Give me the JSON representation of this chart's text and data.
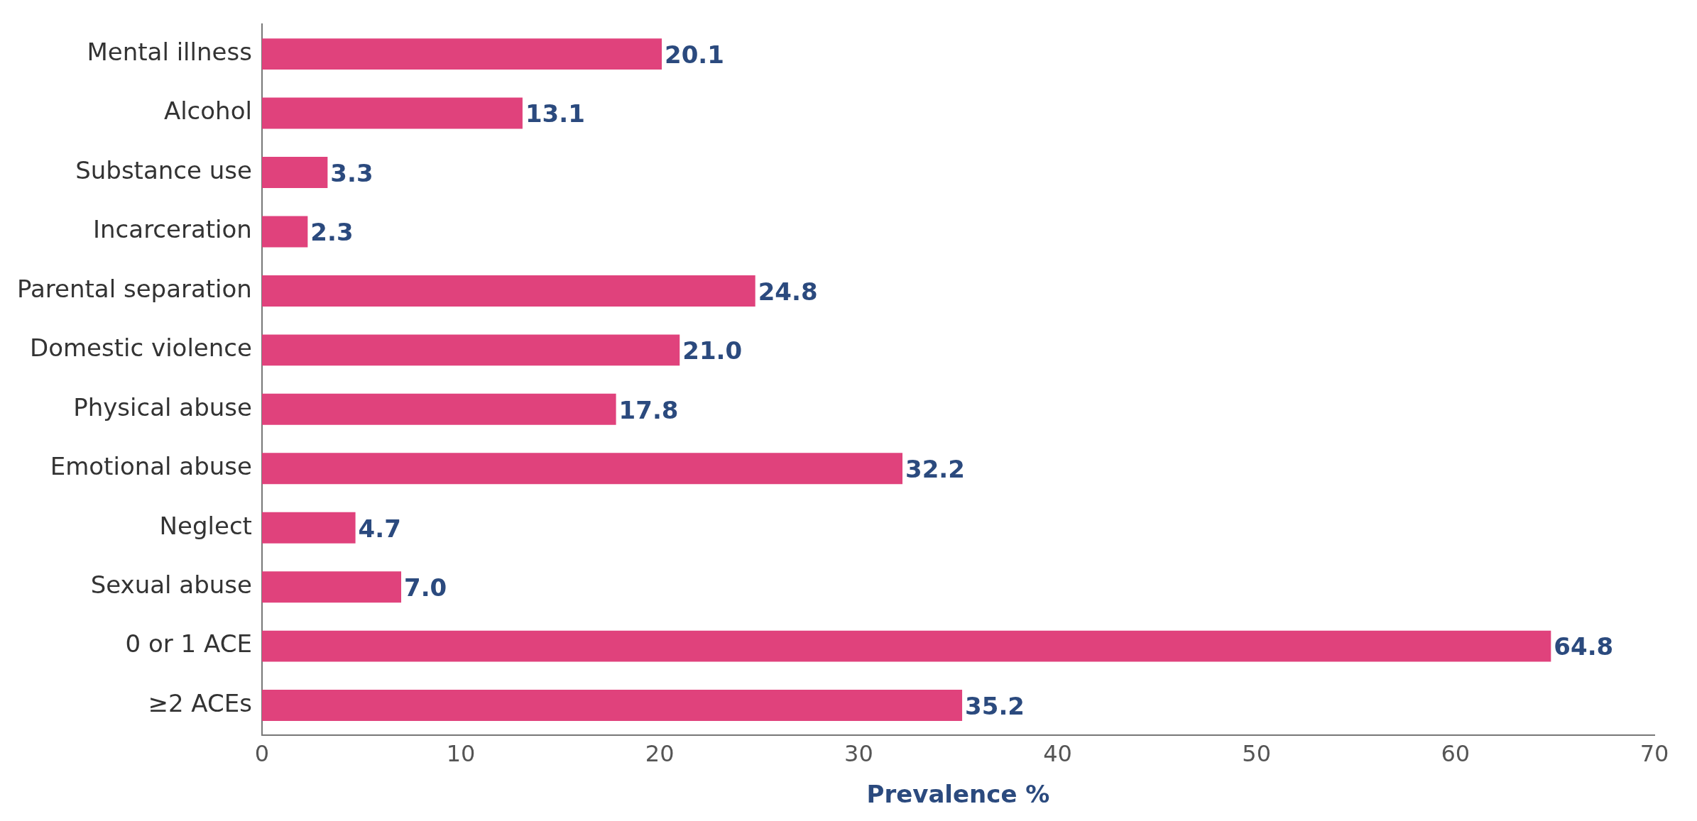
{
  "chart_data": {
    "type": "bar",
    "orientation": "horizontal",
    "xlabel": "Prevalence %",
    "categories": [
      "Mental illness",
      "Alcohol",
      "Substance use",
      "Incarceration",
      "Parental separation",
      "Domestic violence",
      "Physical abuse",
      "Emotional abuse",
      "Neglect",
      "Sexual abuse",
      "0 or 1 ACE",
      "≥2 ACEs"
    ],
    "values": [
      20.1,
      13.1,
      3.3,
      2.3,
      24.8,
      21.0,
      17.8,
      32.2,
      4.7,
      7.0,
      64.8,
      35.2
    ],
    "value_labels": [
      "20.1",
      "13.1",
      "3.3",
      "2.3",
      "24.8",
      "21.0",
      "17.8",
      "32.2",
      "4.7",
      "7.0",
      "64.8",
      "35.2"
    ],
    "color": "#e0427c",
    "xlim": [
      0,
      70
    ],
    "xticks": [
      0,
      10,
      20,
      30,
      40,
      50,
      60,
      70
    ],
    "grid": false,
    "legend": false
  }
}
